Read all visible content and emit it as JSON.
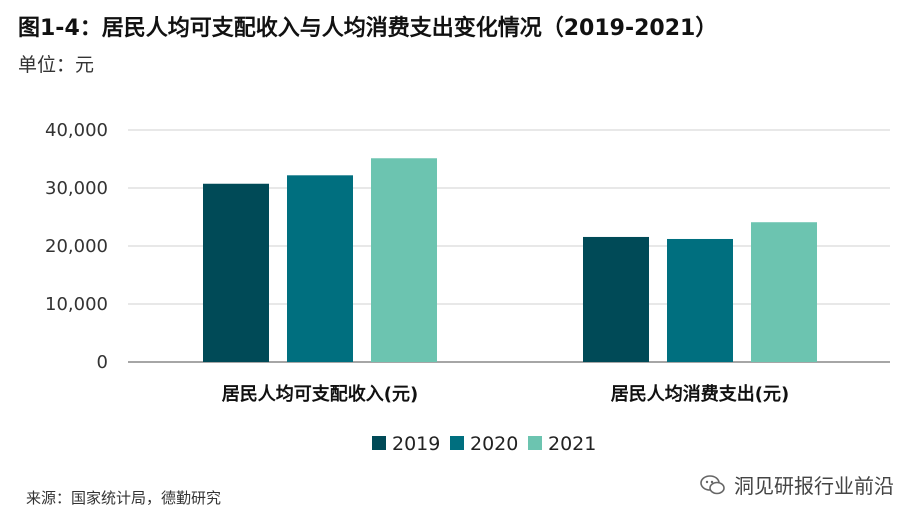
{
  "header": {
    "title": "图1-4：居民人均可支配收入与人均消费支出变化情况（2019-2021）",
    "unit": "单位：元"
  },
  "footer": {
    "source": "来源：国家统计局，德勤研究",
    "watermark": "洞见研报行业前沿"
  },
  "chart_data": {
    "type": "bar",
    "title": "图1-4：居民人均可支配收入与人均消费支出变化情况（2019-2021）",
    "xlabel": "",
    "ylabel": "",
    "categories": [
      "居民人均可支配收入(元)",
      "居民人均消费支出(元)"
    ],
    "series": [
      {
        "name": "2019",
        "color": "#004a57",
        "values": [
          30733,
          21559
        ]
      },
      {
        "name": "2020",
        "color": "#006f7f",
        "values": [
          32189,
          21210
        ]
      },
      {
        "name": "2021",
        "color": "#6cc4b0",
        "values": [
          35128,
          24100
        ]
      }
    ],
    "ylim": [
      0,
      40000
    ],
    "yticks": [
      "0",
      "10,000",
      "20,000",
      "30,000",
      "40,000"
    ],
    "grid": true,
    "legend": "bottom"
  }
}
